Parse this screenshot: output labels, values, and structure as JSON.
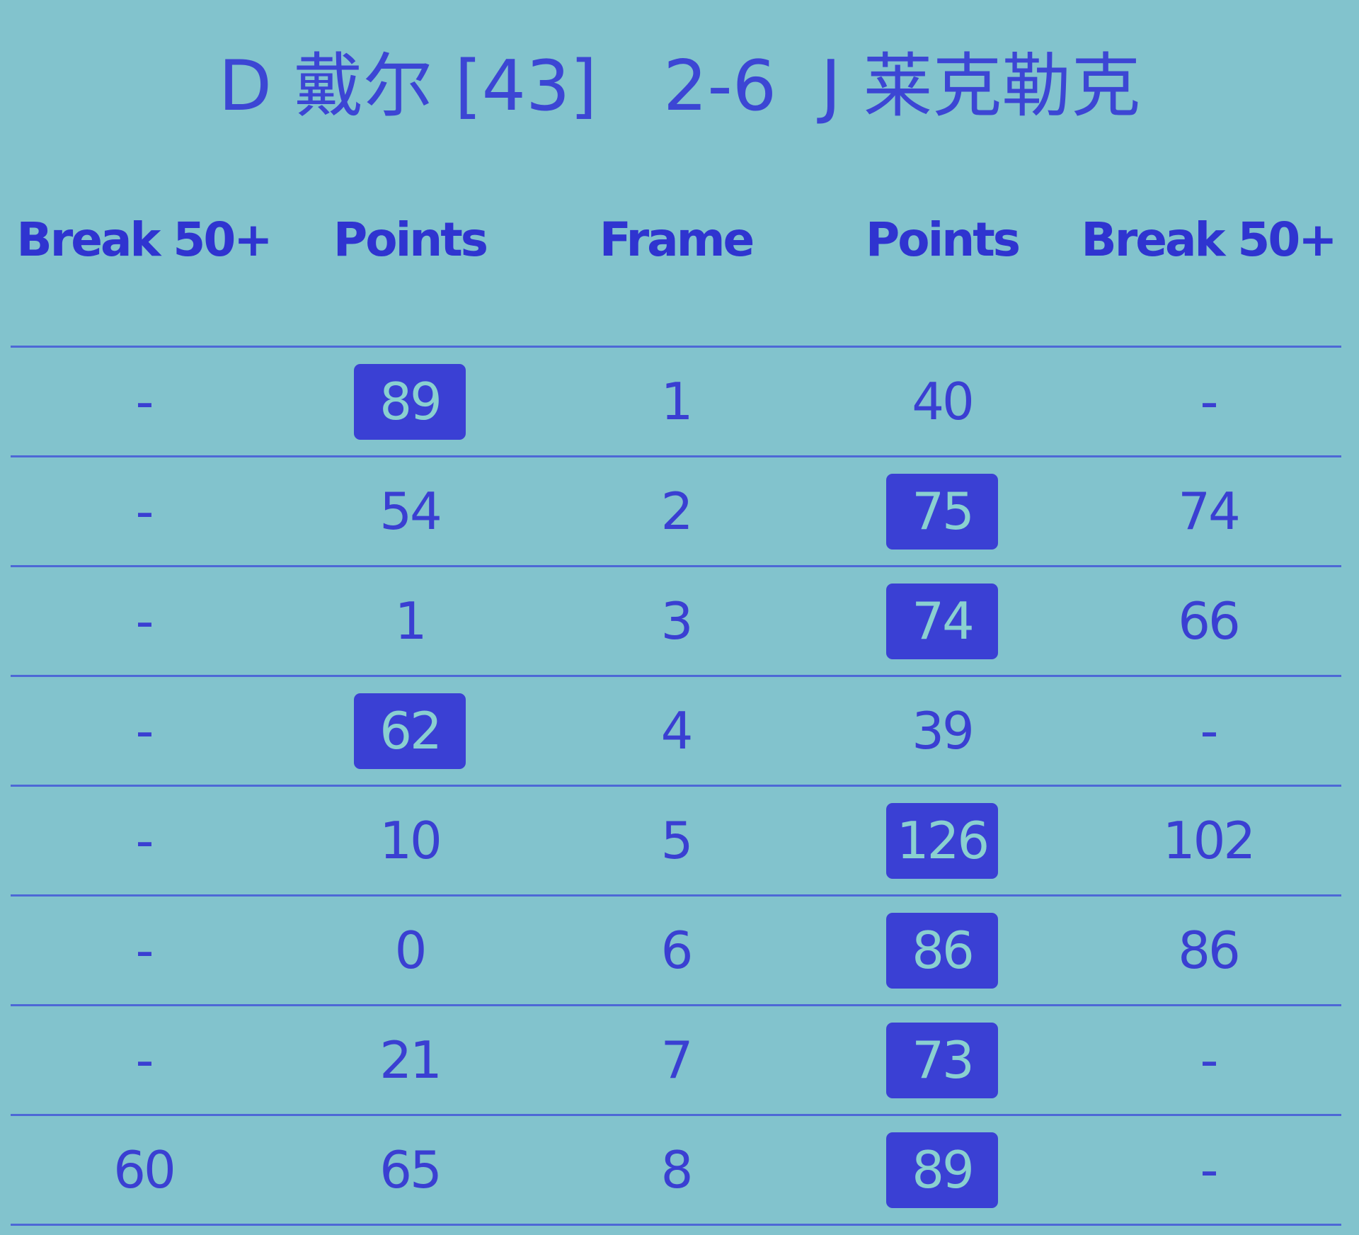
{
  "title": "D 戴尔 [43]   2-6  J 莱克勒克",
  "headers": [
    "Break 50+",
    "Points",
    "Frame",
    "Points",
    "Break 50+"
  ],
  "colors": {
    "background": "#82c3cd",
    "text": "#3a3fd2",
    "winner_badge": "#3a40d4",
    "winner_text": "#8ad0d0"
  },
  "rows": [
    {
      "left_break": "-",
      "left_points": "89",
      "frame": "1",
      "right_points": "40",
      "right_break": "-",
      "winner": "left"
    },
    {
      "left_break": "-",
      "left_points": "54",
      "frame": "2",
      "right_points": "75",
      "right_break": "74",
      "winner": "right"
    },
    {
      "left_break": "-",
      "left_points": "1",
      "frame": "3",
      "right_points": "74",
      "right_break": "66",
      "winner": "right"
    },
    {
      "left_break": "-",
      "left_points": "62",
      "frame": "4",
      "right_points": "39",
      "right_break": "-",
      "winner": "left"
    },
    {
      "left_break": "-",
      "left_points": "10",
      "frame": "5",
      "right_points": "126",
      "right_break": "102",
      "winner": "right"
    },
    {
      "left_break": "-",
      "left_points": "0",
      "frame": "6",
      "right_points": "86",
      "right_break": "86",
      "winner": "right"
    },
    {
      "left_break": "-",
      "left_points": "21",
      "frame": "7",
      "right_points": "73",
      "right_break": "-",
      "winner": "right"
    },
    {
      "left_break": "60",
      "left_points": "65",
      "frame": "8",
      "right_points": "89",
      "right_break": "-",
      "winner": "right"
    }
  ]
}
